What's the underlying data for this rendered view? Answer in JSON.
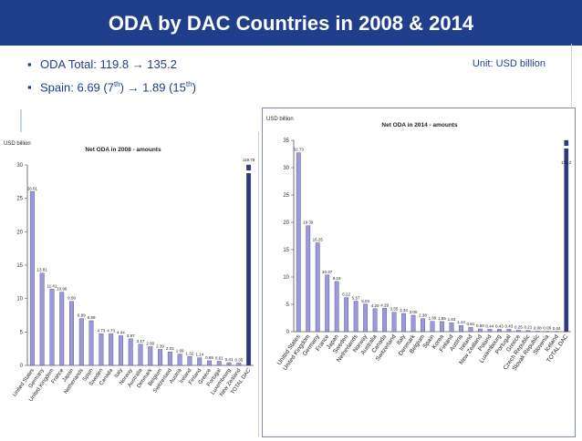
{
  "header": {
    "title": "ODA by DAC Countries in 2008 & 2014"
  },
  "bullets": {
    "line1": "ODA Total: 119.8  → 135.2",
    "line2_prefix": "Spain: 6.69 (7",
    "line2_sup1": "th",
    "line2_mid": ") → 1.89 (15",
    "line2_sup2": "th",
    "line2_suffix": ")",
    "unit": "Unit: USD billion"
  },
  "colors": {
    "title_bg": "#1f3f8c",
    "bar_fill": "#9a9ad8",
    "total_bar": "#2c3a7a"
  },
  "chart_data": [
    {
      "type": "bar",
      "title": "Net ODA in 2008 - amounts",
      "ylabel": "USD billion",
      "ylim": [
        0,
        30
      ],
      "yticks": [
        0,
        5,
        10,
        15,
        20,
        25,
        30
      ],
      "categories": [
        "United States",
        "Germany",
        "United Kingdom",
        "France",
        "Japan",
        "Netherlands",
        "Spain",
        "Sweden",
        "Canada",
        "Italy",
        "Norway",
        "Australia",
        "Denmark",
        "Belgium",
        "Switzerland",
        "Austria",
        "Ireland",
        "Finland",
        "Greece",
        "Portugal",
        "Luxembourg",
        "New Zealand",
        "TOTAL DAC"
      ],
      "values": [
        26.01,
        13.81,
        11.41,
        10.96,
        9.58,
        6.99,
        6.69,
        4.73,
        4.73,
        4.44,
        3.97,
        3.17,
        2.8,
        2.39,
        2.02,
        1.69,
        1.32,
        1.14,
        0.69,
        0.61,
        0.41,
        0.35,
        119.78
      ],
      "value_labels": [
        "26.01",
        "13.81",
        "11.41",
        "10.96",
        "9.58",
        "6.99",
        "6.69",
        "4.73",
        "4.73",
        "4.44",
        "3.97",
        "3.17",
        "2.80",
        "2.39",
        "2.02",
        "1.69",
        "1.32",
        "1.14",
        "0.69",
        "0.61",
        "0.41",
        "0.35",
        "119.78"
      ],
      "total_truncated": true
    },
    {
      "type": "bar",
      "title": "Net ODA in 2014 - amounts",
      "ylabel": "USD billion",
      "ylim": [
        0,
        35
      ],
      "yticks": [
        0,
        5,
        10,
        15,
        20,
        25,
        30,
        35
      ],
      "categories": [
        "United States",
        "United Kingdom",
        "Germany",
        "France",
        "Japan",
        "Sweden",
        "Netherlands",
        "Norway",
        "Australia",
        "Canada",
        "Switzerland",
        "Italy",
        "Denmark",
        "Belgium",
        "Spain",
        "Korea",
        "Finland",
        "Austria",
        "Ireland",
        "New Zealand",
        "Poland",
        "Luxembourg",
        "Portugal",
        "Greece",
        "Czech Republic",
        "Slovak Republic",
        "Slovenia",
        "Iceland",
        "TOTAL DAC"
      ],
      "values": [
        32.73,
        19.39,
        16.25,
        10.37,
        9.19,
        6.22,
        5.57,
        5.03,
        4.2,
        4.29,
        3.55,
        3.34,
        3.0,
        2.38,
        1.89,
        1.85,
        1.63,
        1.14,
        0.81,
        0.5,
        0.44,
        0.43,
        0.43,
        0.25,
        0.21,
        0.08,
        0.06,
        0.04,
        135.2
      ],
      "value_labels": [
        "32.73",
        "19.39",
        "16.25",
        "10.37",
        "9.19",
        "6.22",
        "5.57",
        "5.03",
        "4.20",
        "4.29",
        "3.55",
        "3.34",
        "3.00",
        "2.38",
        "1.89",
        "1.85",
        "1.63",
        "1.14",
        "0.81",
        "0.50",
        "0.44",
        "0.43",
        "0.43",
        "0.25",
        "0.21",
        "0.08",
        "0.06",
        "0.04",
        "135.2"
      ],
      "total_truncated": true
    }
  ]
}
